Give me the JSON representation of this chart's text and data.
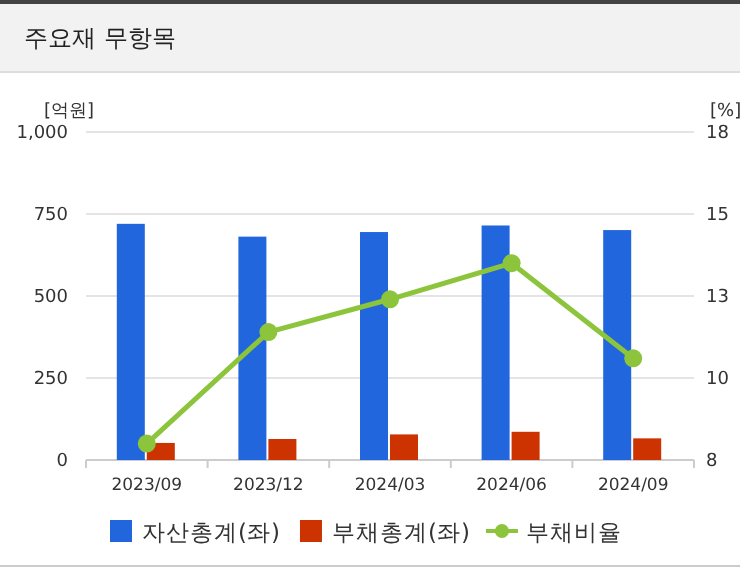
{
  "chart_data": {
    "type": "bar",
    "title": "주요재 무항목",
    "ylabel": "[억원]",
    "y2label": "[%]",
    "categories": [
      "2023/09",
      "2023/12",
      "2024/03",
      "2024/06",
      "2024/09"
    ],
    "series": [
      {
        "name": "자산총계(좌)",
        "color": "#2266dd",
        "values": [
          720,
          681,
          695,
          715,
          701
        ]
      },
      {
        "name": "부채총계(좌)",
        "color": "#cc3300",
        "values": [
          52,
          64,
          78,
          86,
          66
        ]
      },
      {
        "name": "부채비율",
        "type": "line",
        "axis": "y2",
        "color": "#8cc43c",
        "values": [
          8.5,
          11.9,
          12.9,
          14.0,
          11.1
        ]
      }
    ],
    "ylim": [
      0,
      1000
    ],
    "yticks": [
      0,
      250,
      500,
      750,
      {
        "value": 1000,
        "label": "1,000"
      }
    ],
    "y2lim": [
      8,
      18
    ],
    "y2ticks": [
      8,
      {
        "value": 10.5,
        "label": "10"
      },
      13,
      {
        "value": 15.5,
        "label": "15"
      },
      18
    ],
    "grid": "y",
    "legend": "bottom",
    "marker": "circle",
    "line_style": "solid"
  }
}
